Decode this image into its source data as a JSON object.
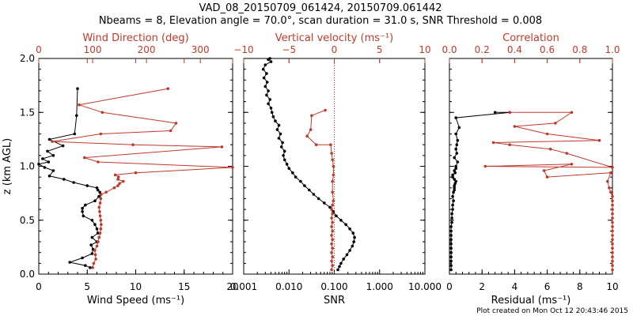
{
  "title_line1": "VAD_08_20150709_061424, 20150709.061442",
  "title_line2": "Nbeams = 8, Elevation angle = 70.0°, scan duration = 31.0 s, SNR Threshold = 0.008",
  "credit": "Plot created on Mon Oct 12 20:43:46 2015",
  "colors": {
    "primary": "#000000",
    "secondary": "#c0392b"
  },
  "chart_data": [
    {
      "type": "line",
      "name": "wind",
      "ylabel": "z (km AGL)",
      "ylim": [
        0,
        2.0
      ],
      "yticks": [
        "0.0",
        "0.5",
        "1.0",
        "1.5",
        "2.0"
      ],
      "xlabel": "Wind Speed (ms⁻¹)",
      "xlim": [
        0,
        20
      ],
      "xticks": [
        "0",
        "5",
        "10",
        "15",
        "20"
      ],
      "top_xlabel": "Wind Direction (deg)",
      "top_xlim": [
        0,
        360
      ],
      "top_xticks": [
        "0",
        "100",
        "200",
        "300"
      ],
      "series": [
        {
          "name": "Wind Speed",
          "axis": "bottom",
          "color": "#000000",
          "x": [
            5.3,
            4.8,
            3.2,
            4.5,
            5.5,
            5.6,
            5.4,
            6.0,
            5.5,
            6.1,
            6.0,
            5.8,
            5.5,
            4.6,
            4.5,
            4.5,
            4.8,
            5.8,
            6.2,
            6.4,
            6.3,
            6.1,
            6.0,
            5.0,
            3.6,
            2.6,
            1.1,
            1.5,
            0.6,
            0.0,
            1.0,
            0.4,
            1.5,
            0.9,
            2.5,
            1.1,
            3.7,
            3.9,
            4.0
          ],
          "y": [
            0.06,
            0.08,
            0.11,
            0.15,
            0.19,
            0.23,
            0.27,
            0.3,
            0.34,
            0.38,
            0.42,
            0.46,
            0.5,
            0.54,
            0.58,
            0.61,
            0.64,
            0.68,
            0.72,
            0.74,
            0.76,
            0.78,
            0.8,
            0.82,
            0.85,
            0.88,
            0.91,
            0.96,
            0.99,
            1.02,
            1.04,
            1.07,
            1.1,
            1.14,
            1.19,
            1.25,
            1.3,
            1.47,
            1.72
          ]
        },
        {
          "name": "Wind Direction",
          "axis": "top",
          "color": "#c0392b",
          "x": [
            100,
            102,
            106,
            105,
            104,
            108,
            110,
            112,
            114,
            115,
            116,
            115,
            114,
            113,
            112,
            114,
            115,
            116,
            125,
            140,
            147,
            150,
            157,
            147,
            148,
            142,
            180,
            360,
            110,
            85,
            340,
            175,
            25,
            115,
            245,
            255,
            118,
            75,
            240
          ],
          "y": [
            0.06,
            0.1,
            0.14,
            0.18,
            0.22,
            0.26,
            0.3,
            0.34,
            0.38,
            0.42,
            0.46,
            0.5,
            0.54,
            0.58,
            0.62,
            0.66,
            0.7,
            0.74,
            0.76,
            0.8,
            0.82,
            0.84,
            0.86,
            0.88,
            0.9,
            0.92,
            0.94,
            0.99,
            1.04,
            1.08,
            1.18,
            1.2,
            1.23,
            1.3,
            1.33,
            1.4,
            1.5,
            1.57,
            1.72
          ]
        }
      ]
    },
    {
      "type": "line",
      "name": "vertical",
      "xscale_bottom": "log",
      "xlabel": "SNR",
      "xlim": [
        0.001,
        10
      ],
      "xticks": [
        "0.001",
        "0.010",
        "0.100",
        "1.000",
        "10.000"
      ],
      "top_xlabel": "Vertical velocity (ms⁻¹)",
      "top_xlim": [
        -10,
        10
      ],
      "top_xticks": [
        "−10",
        "−5",
        "0",
        "5",
        "10"
      ],
      "ylim": [
        0,
        2.0
      ],
      "series": [
        {
          "name": "SNR",
          "axis": "bottom",
          "color": "#000000",
          "x": [
            0.12,
            0.13,
            0.14,
            0.16,
            0.19,
            0.22,
            0.25,
            0.27,
            0.28,
            0.26,
            0.22,
            0.18,
            0.14,
            0.11,
            0.095,
            0.08,
            0.06,
            0.045,
            0.035,
            0.028,
            0.022,
            0.018,
            0.014,
            0.012,
            0.01,
            0.009,
            0.008,
            0.0075,
            0.008,
            0.0068,
            0.0072,
            0.006,
            0.0065,
            0.0055,
            0.006,
            0.005,
            0.0045,
            0.0042,
            0.004,
            0.0035,
            0.0038,
            0.0032,
            0.0035,
            0.003,
            0.0033,
            0.0028,
            0.0032,
            0.0027,
            0.003,
            0.004,
            0.0035,
            0.0038
          ],
          "y": [
            0.04,
            0.07,
            0.1,
            0.14,
            0.18,
            0.22,
            0.26,
            0.3,
            0.34,
            0.38,
            0.42,
            0.46,
            0.5,
            0.54,
            0.58,
            0.62,
            0.66,
            0.7,
            0.74,
            0.78,
            0.82,
            0.86,
            0.9,
            0.94,
            0.98,
            1.02,
            1.06,
            1.1,
            1.14,
            1.18,
            1.22,
            1.26,
            1.3,
            1.34,
            1.38,
            1.42,
            1.46,
            1.5,
            1.54,
            1.58,
            1.62,
            1.66,
            1.7,
            1.74,
            1.78,
            1.82,
            1.86,
            1.9,
            1.94,
            1.97,
            1.99,
            2.0
          ]
        },
        {
          "name": "Vertical velocity",
          "axis": "top",
          "color": "#c0392b",
          "x": [
            -0.3,
            -0.2,
            -0.3,
            -0.2,
            -0.3,
            -0.2,
            -0.3,
            -0.2,
            -0.3,
            -0.2,
            -0.3,
            -0.2,
            -0.3,
            -0.2,
            -0.3,
            -0.2,
            -0.1,
            -0.2,
            -0.2,
            -0.1,
            -0.1,
            -0.2,
            -0.3,
            -0.4,
            -2.0,
            -3.0,
            -2.6,
            -2.5,
            -1.0
          ],
          "y": [
            0.04,
            0.08,
            0.12,
            0.16,
            0.2,
            0.24,
            0.28,
            0.32,
            0.36,
            0.4,
            0.44,
            0.48,
            0.52,
            0.56,
            0.6,
            0.64,
            0.68,
            0.76,
            0.86,
            0.92,
            1.0,
            1.06,
            1.12,
            1.2,
            1.2,
            1.28,
            1.34,
            1.47,
            1.52
          ]
        }
      ],
      "reference_line": {
        "axis": "top",
        "x": 0,
        "style": "dotted",
        "color": "#c0392b"
      }
    },
    {
      "type": "line",
      "name": "fit_quality",
      "xlabel": "Residual (ms⁻¹)",
      "xlim": [
        0,
        10
      ],
      "xticks": [
        "0",
        "2",
        "4",
        "6",
        "8",
        "10"
      ],
      "top_xlabel": "Correlation",
      "top_xlim": [
        0,
        1.0
      ],
      "top_xticks": [
        "0.0",
        "0.2",
        "0.4",
        "0.6",
        "0.8",
        "1.0"
      ],
      "ylim": [
        0,
        2.0
      ],
      "series": [
        {
          "name": "Residual",
          "axis": "bottom",
          "color": "#000000",
          "x": [
            0.1,
            0.1,
            0.1,
            0.1,
            0.1,
            0.1,
            0.1,
            0.1,
            0.1,
            0.1,
            0.1,
            0.15,
            0.15,
            0.15,
            0.2,
            0.2,
            0.25,
            0.2,
            0.25,
            0.3,
            0.3,
            0.3,
            0.35,
            0.4,
            0.3,
            0.2,
            0.2,
            0.35,
            0.3,
            0.4,
            0.4,
            0.5,
            0.3,
            0.45,
            0.4,
            0.45,
            0.5,
            0.4,
            0.6,
            0.4,
            3.7,
            2.8
          ],
          "y": [
            0.04,
            0.08,
            0.12,
            0.16,
            0.2,
            0.24,
            0.28,
            0.32,
            0.36,
            0.4,
            0.44,
            0.48,
            0.52,
            0.56,
            0.6,
            0.64,
            0.68,
            0.72,
            0.76,
            0.78,
            0.8,
            0.82,
            0.84,
            0.86,
            0.88,
            0.9,
            0.92,
            0.94,
            0.96,
            0.98,
            1.0,
            1.04,
            1.08,
            1.12,
            1.16,
            1.2,
            1.24,
            1.3,
            1.36,
            1.45,
            1.5,
            1.5
          ]
        },
        {
          "name": "Correlation",
          "axis": "top",
          "color": "#c0392b",
          "x": [
            1.0,
            1.0,
            1.0,
            1.0,
            1.0,
            1.0,
            1.0,
            1.0,
            1.0,
            1.0,
            1.0,
            1.0,
            1.0,
            1.0,
            1.0,
            1.0,
            1.0,
            1.0,
            0.99,
            0.98,
            0.97,
            0.99,
            0.6,
            0.58,
            0.75,
            0.22,
            1.0,
            0.72,
            0.62,
            0.37,
            0.27,
            0.92,
            0.6,
            0.4,
            0.65,
            0.75,
            0.37
          ],
          "y": [
            0.04,
            0.08,
            0.12,
            0.16,
            0.2,
            0.24,
            0.28,
            0.32,
            0.36,
            0.4,
            0.44,
            0.48,
            0.52,
            0.56,
            0.6,
            0.64,
            0.68,
            0.72,
            0.76,
            0.8,
            0.86,
            0.94,
            0.9,
            0.96,
            1.02,
            1.0,
            0.99,
            1.12,
            1.16,
            1.2,
            1.22,
            1.24,
            1.3,
            1.37,
            1.4,
            1.5,
            1.5
          ]
        }
      ]
    }
  ]
}
